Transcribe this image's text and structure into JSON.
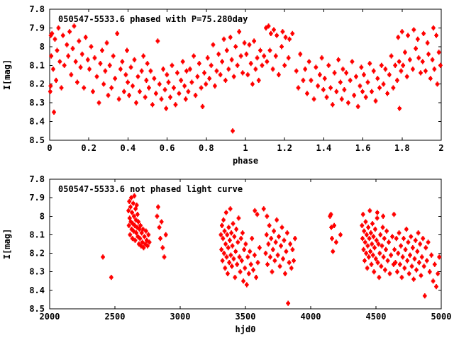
{
  "figure": {
    "background_color": "#ffffff",
    "axis_color": "#000000",
    "point_color": "#ff0000"
  },
  "chart_data": [
    {
      "type": "scatter",
      "title": "050547-5533.6 phased with P=75.280day",
      "xlabel": "phase",
      "ylabel": "I[mag]",
      "xlim": [
        0,
        2
      ],
      "ylim": [
        7.8,
        8.5
      ],
      "y_axis_inverted": true,
      "grid": false,
      "legend": "none",
      "marker": "filled-asterisk",
      "color": "#ff0000",
      "xticks": [
        0,
        0.2,
        0.4,
        0.6,
        0.8,
        1,
        1.2,
        1.4,
        1.6,
        1.8,
        2
      ],
      "xtick_labels": [
        "0",
        "0.2",
        "0.4",
        "0.6",
        "0.8",
        "1",
        "1.2",
        "1.4",
        "1.6",
        "1.8",
        "2"
      ],
      "yticks": [
        7.8,
        7.9,
        8.0,
        8.1,
        8.2,
        8.3,
        8.4,
        8.5
      ],
      "ytick_labels": [
        "7.8",
        "7.9",
        "8",
        "8.1",
        "8.2",
        "8.3",
        "8.4",
        "8.5"
      ],
      "x": [
        0.003,
        0.005,
        0.006,
        0.008,
        0.012,
        0.018,
        0.022,
        0.027,
        0.033,
        0.038,
        0.045,
        0.052,
        0.06,
        0.068,
        0.075,
        0.088,
        0.095,
        0.102,
        0.11,
        0.118,
        0.125,
        0.133,
        0.141,
        0.15,
        0.158,
        0.166,
        0.175,
        0.184,
        0.195,
        0.203,
        0.212,
        0.221,
        0.23,
        0.241,
        0.252,
        0.259,
        0.268,
        0.276,
        0.284,
        0.292,
        0.299,
        0.307,
        0.316,
        0.325,
        0.334,
        0.345,
        0.354,
        0.362,
        0.371,
        0.38,
        0.389,
        0.395,
        0.399,
        0.406,
        0.415,
        0.424,
        0.433,
        0.442,
        0.451,
        0.46,
        0.47,
        0.479,
        0.488,
        0.494,
        0.499,
        0.507,
        0.516,
        0.525,
        0.534,
        0.543,
        0.552,
        0.561,
        0.571,
        0.58,
        0.589,
        0.595,
        0.599,
        0.607,
        0.616,
        0.625,
        0.634,
        0.643,
        0.652,
        0.661,
        0.671,
        0.68,
        0.689,
        0.695,
        0.699,
        0.708,
        0.717,
        0.726,
        0.736,
        0.745,
        0.755,
        0.764,
        0.774,
        0.781,
        0.79,
        0.798,
        0.807,
        0.816,
        0.825,
        0.835,
        0.844,
        0.853,
        0.863,
        0.872,
        0.881,
        0.89,
        0.898,
        0.905,
        0.914,
        0.923,
        0.93,
        0.935,
        0.941,
        0.95,
        0.959,
        0.968,
        0.977,
        0.986,
        0.995,
        1.005,
        1.012,
        1.02,
        1.028,
        1.036,
        1.044,
        1.052,
        1.06,
        1.068,
        1.076,
        1.085,
        1.095,
        1.105,
        1.11,
        1.118,
        1.125,
        1.13,
        1.14,
        1.145,
        1.155,
        1.16,
        1.17,
        1.185,
        1.19,
        1.2,
        1.205,
        1.22,
        1.225,
        1.24,
        1.26,
        1.27,
        1.28,
        1.295,
        1.305,
        1.315,
        1.325,
        1.335,
        1.35,
        1.36,
        1.37,
        1.38,
        1.39,
        1.398,
        1.405,
        1.415,
        1.425,
        1.435,
        1.445,
        1.455,
        1.465,
        1.475,
        1.485,
        1.492,
        1.498,
        1.505,
        1.515,
        1.525,
        1.535,
        1.545,
        1.555,
        1.565,
        1.575,
        1.585,
        1.592,
        1.598,
        1.605,
        1.615,
        1.625,
        1.635,
        1.645,
        1.655,
        1.665,
        1.675,
        1.685,
        1.695,
        1.705,
        1.715,
        1.725,
        1.735,
        1.745,
        1.755,
        1.765,
        1.775,
        1.78,
        1.785,
        1.787,
        1.795,
        1.8,
        1.805,
        1.815,
        1.825,
        1.83,
        1.84,
        1.855,
        1.86,
        1.87,
        1.88,
        1.885,
        1.895,
        1.905,
        1.91,
        1.92,
        1.93,
        1.935,
        1.945,
        1.955,
        1.96,
        1.965,
        1.975,
        1.98,
        1.988,
        1.996
      ],
      "y": [
        8.24,
        8.21,
        7.94,
        8.05,
        7.93,
        8.12,
        8.35,
        7.96,
        8.18,
        8.02,
        7.9,
        8.08,
        8.22,
        7.94,
        8.1,
        7.99,
        8.05,
        7.92,
        8.15,
        8.01,
        7.89,
        8.08,
        8.19,
        7.97,
        8.11,
        8.04,
        8.22,
        7.95,
        8.07,
        8.12,
        8.0,
        8.24,
        8.06,
        8.16,
        8.3,
        8.09,
        8.02,
        8.2,
        8.13,
        7.98,
        8.26,
        8.1,
        8.22,
        8.05,
        8.17,
        7.93,
        8.28,
        8.12,
        8.08,
        8.24,
        8.15,
        8.02,
        8.19,
        8.26,
        8.11,
        8.21,
        8.07,
        8.3,
        8.16,
        8.24,
        8.13,
        8.05,
        8.27,
        8.18,
        8.09,
        8.22,
        8.13,
        8.31,
        8.17,
        8.25,
        7.97,
        8.2,
        8.28,
        8.12,
        8.23,
        8.33,
        8.15,
        8.19,
        8.27,
        8.1,
        8.22,
        8.31,
        8.14,
        8.25,
        8.18,
        8.08,
        8.21,
        8.28,
        8.13,
        8.24,
        8.12,
        8.19,
        8.05,
        8.26,
        8.16,
        8.09,
        8.22,
        8.32,
        8.14,
        8.2,
        8.06,
        8.17,
        8.1,
        7.99,
        8.21,
        8.13,
        8.04,
        8.15,
        8.08,
        7.96,
        8.18,
        8.02,
        8.12,
        7.95,
        8.07,
        8.45,
        8.16,
        8.0,
        8.1,
        7.92,
        8.05,
        8.14,
        7.98,
        8.04,
        8.15,
        7.99,
        8.09,
        8.2,
        7.97,
        8.12,
        8.06,
        8.18,
        8.02,
        8.1,
        8.05,
        7.9,
        8.08,
        7.89,
        8.02,
        7.93,
        8.12,
        7.91,
        8.05,
        7.94,
        8.15,
        8.0,
        7.92,
        8.1,
        7.95,
        8.06,
        7.96,
        7.93,
        8.13,
        8.22,
        8.04,
        8.18,
        8.12,
        8.25,
        8.08,
        8.18,
        8.28,
        8.11,
        8.21,
        8.15,
        8.06,
        8.23,
        8.17,
        8.27,
        8.1,
        8.22,
        8.31,
        8.14,
        8.24,
        8.07,
        8.19,
        8.28,
        8.12,
        8.23,
        8.14,
        8.3,
        8.18,
        8.08,
        8.26,
        8.16,
        8.32,
        8.21,
        8.11,
        8.24,
        8.15,
        8.27,
        8.19,
        8.09,
        8.24,
        8.13,
        8.29,
        8.17,
        8.22,
        8.1,
        8.2,
        8.12,
        8.25,
        8.15,
        8.05,
        8.22,
        8.1,
        8.18,
        7.95,
        8.08,
        8.33,
        8.13,
        7.92,
        8.1,
        8.03,
        8.16,
        7.94,
        8.07,
        8.12,
        7.91,
        8.01,
        7.96,
        8.06,
        8.14,
        8.08,
        7.93,
        8.13,
        7.98,
        8.04,
        8.17,
        8.07,
        7.9,
        8.12,
        7.94,
        8.2,
        8.03,
        8.1
      ]
    },
    {
      "type": "scatter",
      "title": "050547-5533.6 not phased light curve",
      "xlabel": "hjd0",
      "ylabel": "I[mag]",
      "xlim": [
        2000,
        5000
      ],
      "ylim": [
        7.8,
        8.5
      ],
      "y_axis_inverted": true,
      "grid": false,
      "legend": "none",
      "marker": "filled-asterisk",
      "color": "#ff0000",
      "xticks": [
        2000,
        2500,
        3000,
        3500,
        4000,
        4500,
        5000
      ],
      "xtick_labels": [
        "2000",
        "2500",
        "3000",
        "3500",
        "4000",
        "4500",
        "5000"
      ],
      "yticks": [
        7.8,
        7.9,
        8.0,
        8.1,
        8.2,
        8.3,
        8.4,
        8.5
      ],
      "ytick_labels": [
        "7.8",
        "7.9",
        "8",
        "8.1",
        "8.2",
        "8.3",
        "8.4",
        "8.5"
      ],
      "x": [
        2408,
        2472,
        2604,
        2607,
        2610,
        2613,
        2616,
        2619,
        2622,
        2625,
        2628,
        2631,
        2634,
        2637,
        2640,
        2643,
        2646,
        2649,
        2652,
        2655,
        2658,
        2661,
        2664,
        2667,
        2670,
        2673,
        2676,
        2680,
        2684,
        2688,
        2692,
        2696,
        2700,
        2705,
        2710,
        2715,
        2720,
        2726,
        2732,
        2738,
        2744,
        2750,
        2757,
        2764,
        2823,
        2831,
        2840,
        2848,
        2857,
        2866,
        2878,
        2890,
        3312,
        3316,
        3320,
        3324,
        3328,
        3332,
        3336,
        3340,
        3344,
        3348,
        3352,
        3356,
        3360,
        3364,
        3368,
        3372,
        3376,
        3380,
        3384,
        3388,
        3392,
        3396,
        3400,
        3405,
        3410,
        3415,
        3420,
        3425,
        3430,
        3436,
        3442,
        3448,
        3454,
        3460,
        3466,
        3472,
        3478,
        3484,
        3490,
        3496,
        3502,
        3510,
        3518,
        3526,
        3534,
        3542,
        3550,
        3560,
        3570,
        3582,
        3595,
        3608,
        3572,
        3590,
        3640,
        3655,
        3662,
        3665,
        3669,
        3676,
        3683,
        3690,
        3697,
        3704,
        3711,
        3718,
        3725,
        3732,
        3740,
        3748,
        3756,
        3764,
        3772,
        3780,
        3788,
        3796,
        3804,
        3812,
        3820,
        3827,
        3835,
        3843,
        3852,
        3861,
        3870,
        3880,
        4148,
        4155,
        4158,
        4163,
        4170,
        4180,
        4195,
        4228,
        4393,
        4397,
        4401,
        4405,
        4409,
        4413,
        4417,
        4421,
        4425,
        4429,
        4433,
        4437,
        4441,
        4445,
        4449,
        4453,
        4457,
        4461,
        4465,
        4469,
        4473,
        4477,
        4481,
        4485,
        4489,
        4494,
        4499,
        4504,
        4509,
        4510,
        4514,
        4519,
        4524,
        4529,
        4534,
        4540,
        4546,
        4552,
        4555,
        4558,
        4564,
        4570,
        4576,
        4582,
        4590,
        4598,
        4606,
        4615,
        4625,
        4635,
        4638,
        4642,
        4649,
        4656,
        4663,
        4670,
        4677,
        4684,
        4691,
        4698,
        4705,
        4712,
        4719,
        4726,
        4733,
        4740,
        4747,
        4754,
        4761,
        4768,
        4775,
        4782,
        4789,
        4796,
        4803,
        4810,
        4817,
        4824,
        4831,
        4838,
        4845,
        4852,
        4860,
        4868,
        4874,
        4882,
        4890,
        4900,
        4912,
        4925,
        4938,
        4950,
        4962,
        4974,
        4985
      ],
      "y": [
        8.22,
        8.33,
        7.97,
        8.05,
        7.92,
        8.01,
        8.1,
        7.95,
        8.03,
        7.9,
        8.07,
        7.98,
        8.12,
        8.04,
        7.93,
        8.08,
        8.0,
        7.89,
        8.05,
        8.13,
        7.96,
        8.02,
        8.09,
        7.94,
        8.06,
        7.99,
        8.11,
        8.03,
        8.15,
        8.07,
        8.12,
        8.05,
        8.16,
        8.09,
        8.14,
        8.07,
        8.17,
        8.11,
        8.15,
        8.08,
        8.13,
        8.16,
        8.1,
        8.14,
        8.0,
        7.95,
        8.06,
        8.12,
        8.03,
        8.17,
        8.22,
        8.1,
        8.1,
        8.18,
        8.05,
        8.24,
        8.12,
        8.02,
        8.2,
        8.08,
        8.28,
        8.15,
        7.98,
        8.22,
        8.1,
        8.31,
        8.17,
        8.06,
        8.25,
        8.13,
        7.96,
        8.21,
        8.09,
        8.27,
        8.16,
        8.04,
        8.23,
        8.11,
        8.33,
        8.19,
        8.07,
        8.26,
        8.14,
        8.01,
        8.22,
        8.3,
        8.12,
        8.24,
        8.09,
        8.35,
        8.18,
        8.28,
        8.15,
        8.37,
        8.22,
        8.31,
        8.19,
        8.26,
        8.12,
        8.29,
        8.21,
        8.33,
        8.25,
        8.17,
        7.97,
        7.99,
        7.96,
        8.2,
        8.1,
        8.0,
        8.26,
        8.15,
        8.05,
        8.22,
        8.12,
        8.3,
        8.18,
        8.08,
        8.24,
        8.14,
        8.02,
        8.21,
        8.11,
        8.27,
        8.16,
        8.06,
        8.23,
        8.13,
        8.31,
        8.19,
        8.09,
        8.47,
        8.25,
        8.15,
        8.28,
        8.18,
        8.24,
        8.12,
        8.0,
        7.99,
        8.06,
        8.12,
        8.19,
        8.05,
        8.14,
        8.1,
        8.05,
        8.12,
        7.99,
        8.18,
        8.08,
        8.24,
        8.14,
        8.03,
        8.2,
        8.1,
        8.28,
        8.16,
        8.06,
        8.22,
        8.12,
        7.97,
        8.19,
        8.09,
        8.26,
        8.15,
        8.04,
        8.21,
        8.11,
        8.3,
        8.17,
        8.07,
        8.23,
        8.13,
        8.01,
        7.98,
        8.25,
        8.15,
        8.33,
        8.2,
        8.1,
        8.27,
        8.16,
        8.06,
        8.0,
        8.22,
        8.12,
        8.29,
        8.18,
        8.08,
        8.24,
        8.14,
        8.31,
        8.21,
        8.11,
        8.26,
        7.99,
        8.18,
        8.25,
        8.12,
        8.3,
        8.2,
        8.09,
        8.26,
        8.16,
        8.33,
        8.22,
        8.12,
        8.28,
        8.18,
        8.07,
        8.24,
        8.14,
        8.31,
        8.21,
        8.11,
        8.27,
        8.17,
        8.34,
        8.23,
        8.13,
        8.29,
        8.19,
        8.09,
        8.25,
        8.15,
        8.32,
        8.22,
        8.12,
        8.27,
        8.43,
        8.17,
        8.24,
        8.14,
        8.3,
        8.21,
        8.35,
        8.26,
        8.38,
        8.31,
        8.22
      ]
    }
  ]
}
